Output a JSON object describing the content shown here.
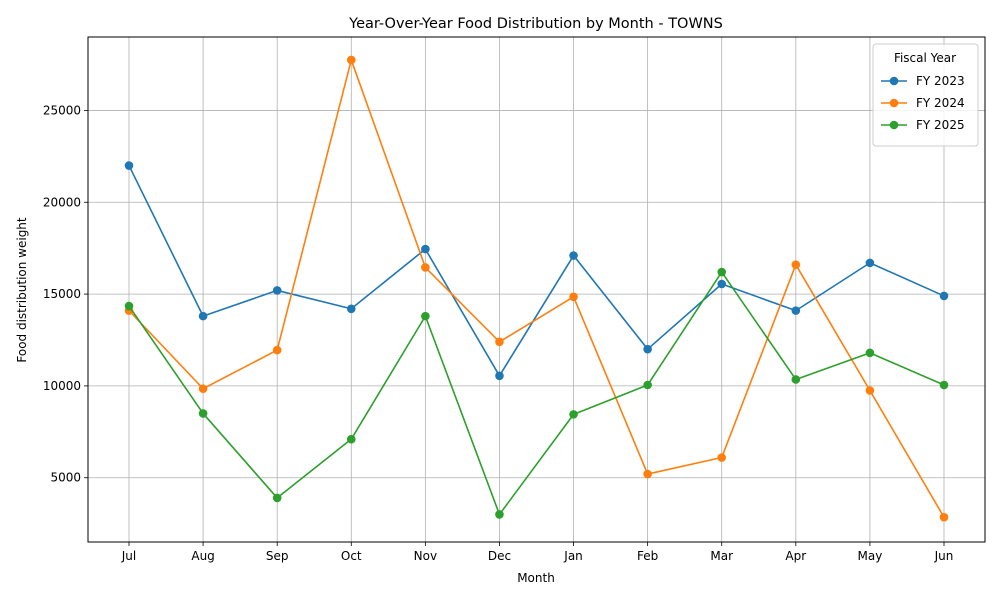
{
  "chart_data": {
    "type": "line",
    "title": "Year-Over-Year Food Distribution by Month - TOWNS",
    "xlabel": "Month",
    "ylabel": "Food distribution weight",
    "categories": [
      "Jul",
      "Aug",
      "Sep",
      "Oct",
      "Nov",
      "Dec",
      "Jan",
      "Feb",
      "Mar",
      "Apr",
      "May",
      "Jun"
    ],
    "ylim": [
      1500,
      29000
    ],
    "yticks": [
      5000,
      10000,
      15000,
      20000,
      25000
    ],
    "grid": true,
    "legend": {
      "title": "Fiscal Year",
      "placement": "top-right"
    },
    "series": [
      {
        "name": "FY 2023",
        "color": "#1f77b4",
        "values": [
          22000,
          13800,
          15200,
          14200,
          17450,
          10550,
          17100,
          12000,
          15550,
          14100,
          16700,
          14900
        ]
      },
      {
        "name": "FY 2024",
        "color": "#ff7f0e",
        "values": [
          14100,
          9850,
          11950,
          27750,
          16450,
          12400,
          14850,
          5200,
          6100,
          16600,
          9750,
          2850
        ]
      },
      {
        "name": "FY 2025",
        "color": "#2ca02c",
        "values": [
          14350,
          8500,
          3900,
          7100,
          13800,
          3000,
          8450,
          10050,
          16200,
          10350,
          11800,
          10050
        ]
      }
    ]
  }
}
